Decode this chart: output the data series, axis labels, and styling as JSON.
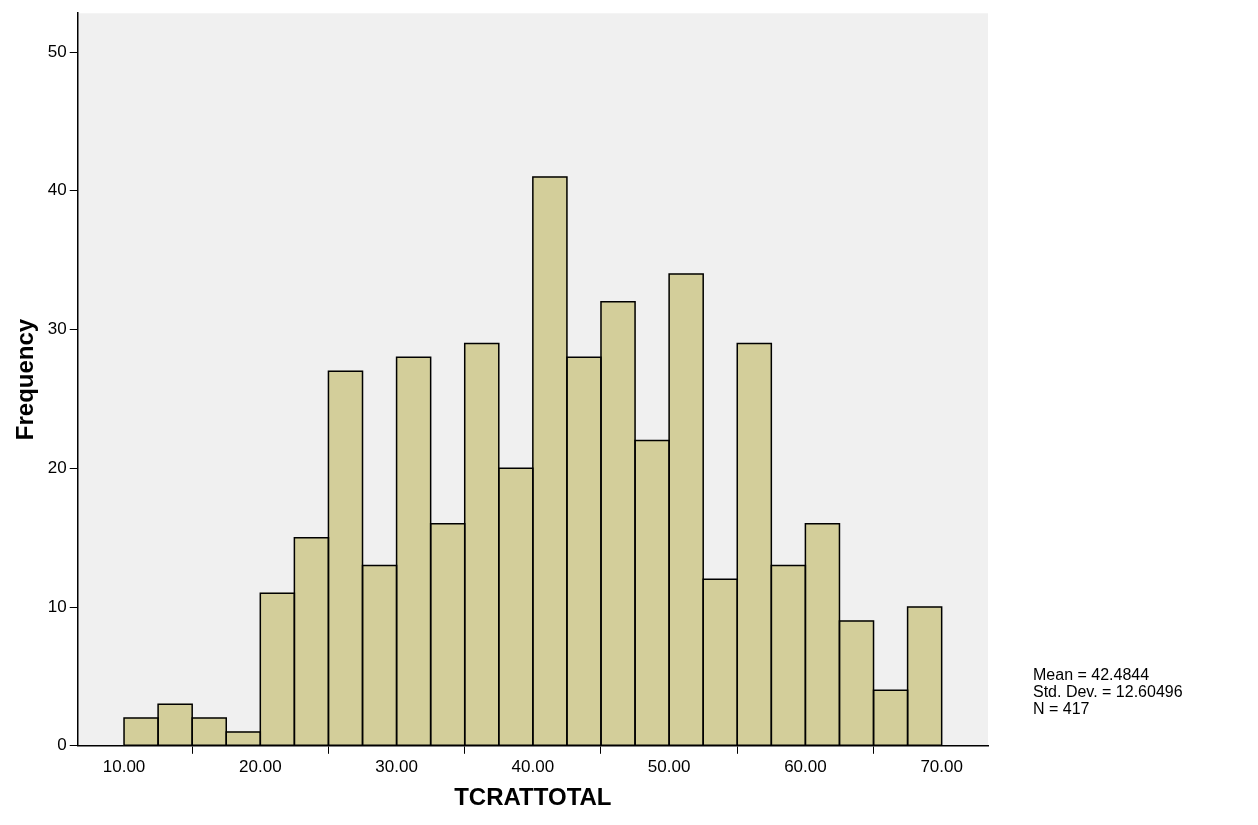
{
  "chart_data": {
    "type": "histogram",
    "xlabel": "TCRATTOTAL",
    "ylabel": "Frequency",
    "bins": [
      10,
      12.5,
      15,
      17.5,
      20,
      22.5,
      25,
      27.5,
      30,
      32.5,
      35,
      37.5,
      40,
      42.5,
      45,
      47.5,
      50,
      52.5,
      55,
      57.5,
      60,
      62.5,
      65,
      67.5,
      70
    ],
    "values": [
      2,
      3,
      2,
      1,
      11,
      15,
      27,
      13,
      28,
      16,
      29,
      20,
      41,
      28,
      32,
      22,
      34,
      12,
      29,
      13,
      16,
      9,
      4,
      10
    ],
    "color": "#d3ce9a",
    "xlim": [
      6.6,
      73.4
    ],
    "xticks": [
      {
        "value": 10,
        "label": "10.00"
      },
      {
        "value": 20,
        "label": "20.00"
      },
      {
        "value": 30,
        "label": "30.00"
      },
      {
        "value": 40,
        "label": "40.00"
      },
      {
        "value": 50,
        "label": "50.00"
      },
      {
        "value": 60,
        "label": "60.00"
      },
      {
        "value": 70,
        "label": "70.00"
      }
    ],
    "ylim": [
      0,
      52.8
    ],
    "yticks": [
      0,
      10,
      20,
      30,
      40,
      50
    ],
    "grid": false,
    "legend": false,
    "annotations": [
      "Mean = 42.4844",
      "Std. Dev. = 12.60496",
      "N = 417"
    ]
  }
}
